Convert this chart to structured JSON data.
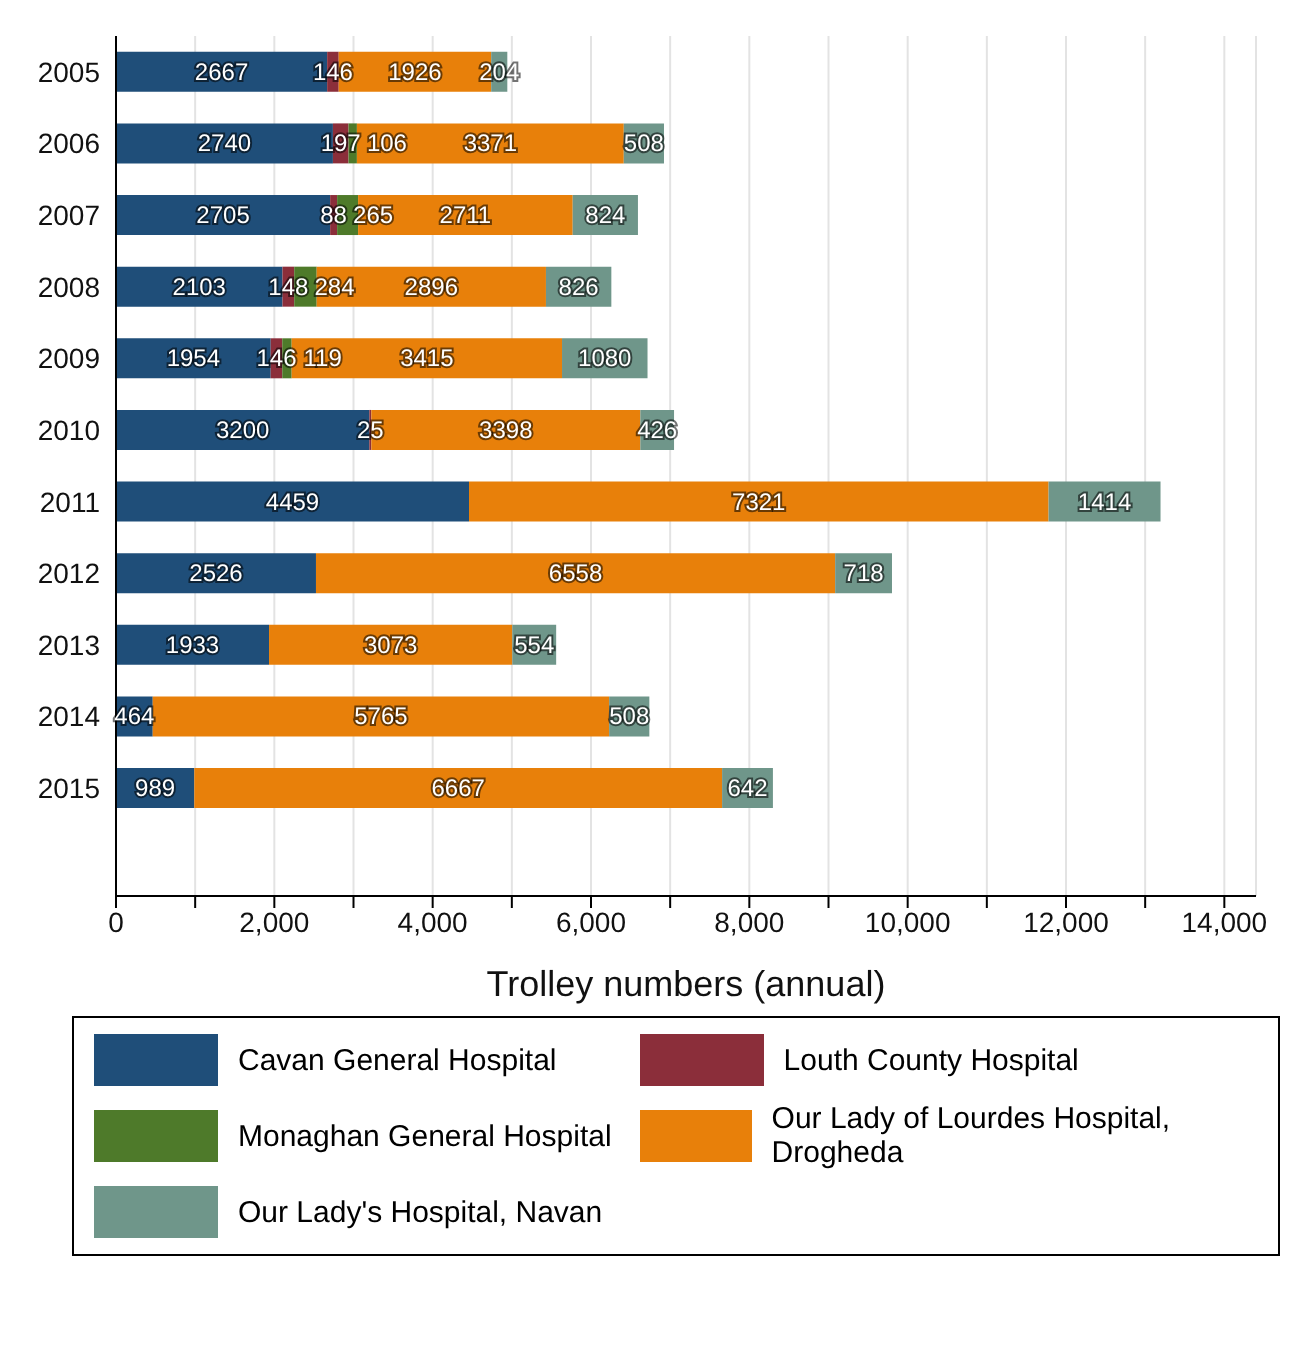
{
  "chart_data": {
    "type": "bar",
    "orientation": "horizontal",
    "stacked": true,
    "xlabel": "Trolley numbers (annual)",
    "categories": [
      "2005",
      "2006",
      "2007",
      "2008",
      "2009",
      "2010",
      "2011",
      "2012",
      "2013",
      "2014",
      "2015"
    ],
    "series": [
      {
        "name": "Cavan General Hospital",
        "color": "#1f4e79",
        "values": [
          2667,
          2740,
          2705,
          2103,
          1954,
          3200,
          4459,
          2526,
          1933,
          464,
          989
        ]
      },
      {
        "name": "Louth County Hospital",
        "color": "#8b2e3a",
        "values": [
          146,
          197,
          88,
          148,
          146,
          25,
          null,
          null,
          null,
          null,
          null
        ]
      },
      {
        "name": "Monaghan General Hospital",
        "color": "#4e7a2a",
        "values": [
          null,
          106,
          265,
          284,
          119,
          null,
          null,
          null,
          null,
          null,
          null
        ]
      },
      {
        "name": "Our Lady of Lourdes Hospital, Drogheda",
        "color": "#e8800a",
        "values": [
          1926,
          3371,
          2711,
          2896,
          3415,
          3398,
          7321,
          6558,
          3073,
          5765,
          6667
        ]
      },
      {
        "name": "Our Lady's Hospital, Navan",
        "color": "#6f968a",
        "values": [
          204,
          508,
          824,
          826,
          1080,
          426,
          1414,
          718,
          554,
          508,
          642
        ]
      }
    ],
    "xlim": [
      0,
      14400
    ],
    "xticks": [
      0,
      {
        "value": 1000,
        "label": null
      },
      "2,000",
      {
        "value": 3000,
        "label": null
      },
      {
        "value": 4000,
        "label": "4,000"
      },
      {
        "value": 5000,
        "label": null
      },
      {
        "value": 6000,
        "label": "6,000"
      },
      {
        "value": 7000,
        "label": null
      },
      {
        "value": 8000,
        "label": "8,000"
      },
      {
        "value": 9000,
        "label": null
      },
      {
        "value": 10000,
        "label": "10,000"
      },
      {
        "value": 11000,
        "label": null
      },
      {
        "value": 12000,
        "label": "12,000"
      },
      {
        "value": 13000,
        "label": null
      },
      {
        "value": 14000,
        "label": "14,000"
      }
    ],
    "grid": "x",
    "data_labels": true,
    "legend": "bottom"
  }
}
